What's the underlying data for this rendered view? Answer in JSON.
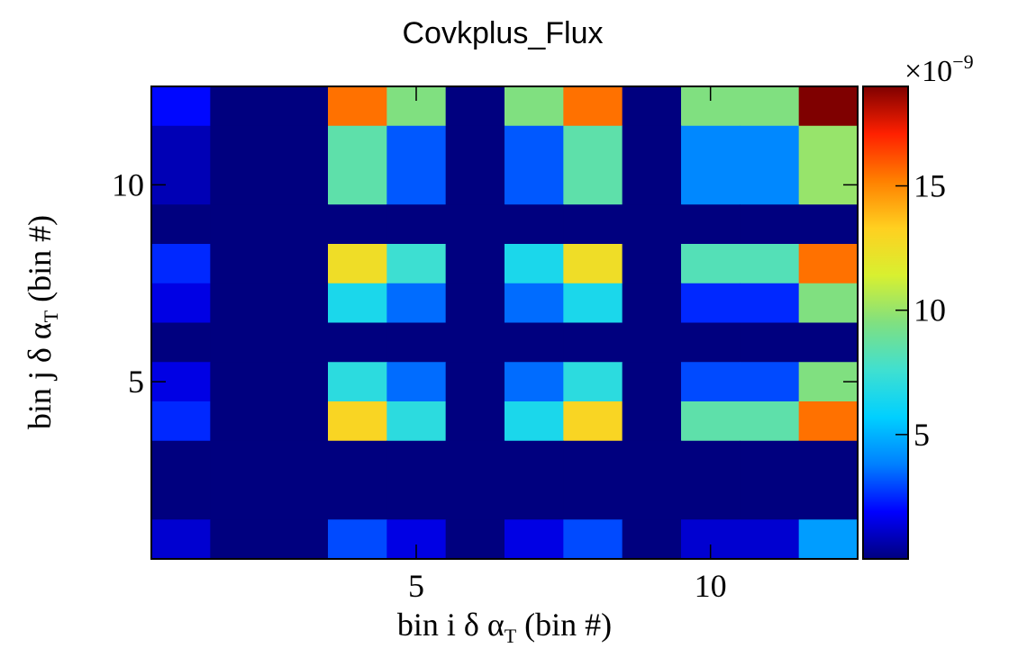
{
  "chart_data": {
    "type": "heatmap",
    "title": "Covkplus_Flux",
    "xlabel": {
      "main": "bin i δ α",
      "sub": "T",
      "suffix": " (bin #)"
    },
    "ylabel": {
      "main": "bin j δ α",
      "sub": "T",
      "suffix": " (bin #)"
    },
    "xlim": [
      0.5,
      12.5
    ],
    "ylim": [
      0.5,
      12.5
    ],
    "x_ticks": [
      5,
      10
    ],
    "y_ticks": [
      5,
      10
    ],
    "colorbar": {
      "multiplier_base": "×10",
      "multiplier_exp": "−9",
      "zlim": [
        0,
        19
      ],
      "ticks": [
        5,
        10,
        15
      ],
      "colormap": [
        "#00007F",
        "#0000FF",
        "#0080FF",
        "#00D0FF",
        "#40E0D0",
        "#80E080",
        "#D8F030",
        "#FFD020",
        "#FF8000",
        "#FF2000",
        "#7F0000"
      ]
    },
    "z_units": "1e-9",
    "rows_top_to_bottom": [
      [
        2.0,
        0,
        0,
        15.5,
        9.5,
        0,
        9.5,
        15.5,
        0,
        9.5,
        9.5,
        19.0
      ],
      [
        0.8,
        0,
        0,
        8.5,
        3.2,
        0,
        3.2,
        8.5,
        0,
        4.0,
        4.0,
        10.0
      ],
      [
        0.8,
        0,
        0,
        8.5,
        3.2,
        0,
        3.2,
        8.5,
        0,
        4.0,
        4.0,
        10.0
      ],
      [
        0,
        0,
        0,
        0,
        0,
        0,
        0,
        0,
        0,
        0,
        0,
        0
      ],
      [
        2.5,
        0,
        0,
        12.5,
        7.5,
        0,
        6.5,
        12.5,
        0,
        8.2,
        8.2,
        15.5
      ],
      [
        1.5,
        0,
        0,
        6.5,
        3.5,
        0,
        3.5,
        6.5,
        0,
        2.5,
        2.5,
        9.5
      ],
      [
        0,
        0,
        0,
        0,
        0,
        0,
        0,
        0,
        0,
        0,
        0,
        0
      ],
      [
        1.5,
        0,
        0,
        7.0,
        3.5,
        0,
        3.5,
        7.0,
        0,
        3.0,
        3.0,
        9.5
      ],
      [
        2.5,
        0,
        0,
        13.0,
        7.0,
        0,
        6.5,
        13.0,
        0,
        8.5,
        8.5,
        15.5
      ],
      [
        0,
        0,
        0,
        0,
        0,
        0,
        0,
        0,
        0,
        0,
        0,
        0
      ],
      [
        0,
        0,
        0,
        0,
        0,
        0,
        0,
        0,
        0,
        0,
        0,
        0
      ],
      [
        1.2,
        0,
        0,
        3.0,
        1.5,
        0,
        1.5,
        3.0,
        0,
        1.2,
        1.2,
        4.5
      ]
    ]
  }
}
